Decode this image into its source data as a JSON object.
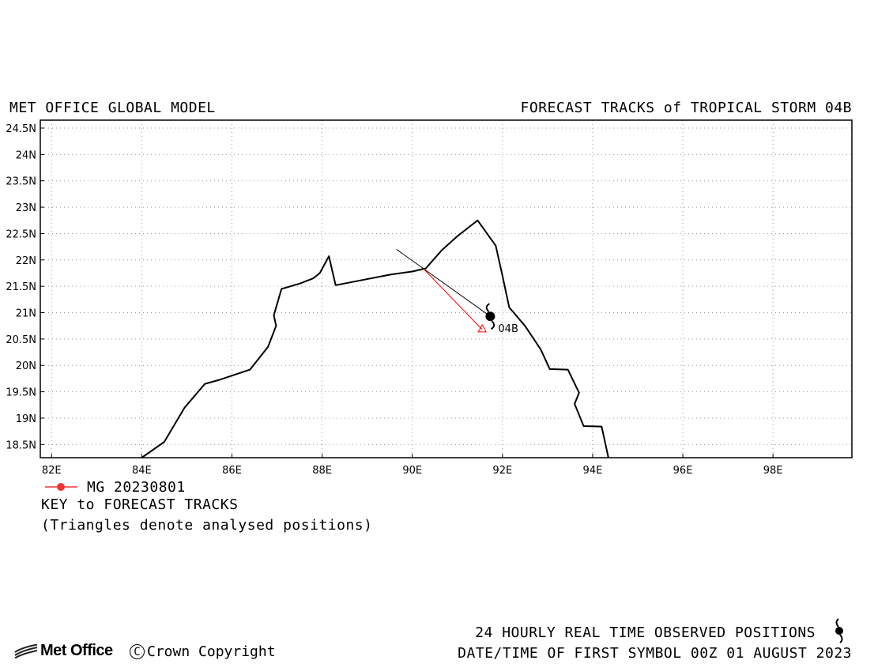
{
  "header": {
    "left_title": "MET OFFICE GLOBAL MODEL",
    "right_title": "FORECAST TRACKS of TROPICAL STORM 04B"
  },
  "map": {
    "lon_range": [
      81.75,
      99.75
    ],
    "lat_range": [
      18.25,
      24.65
    ],
    "lat_ticks": [
      {
        "value": 24.5,
        "label": "24.5N"
      },
      {
        "value": 24.0,
        "label": "24N"
      },
      {
        "value": 23.5,
        "label": "23.5N"
      },
      {
        "value": 23.0,
        "label": "23N"
      },
      {
        "value": 22.5,
        "label": "22.5N"
      },
      {
        "value": 22.0,
        "label": "22N"
      },
      {
        "value": 21.5,
        "label": "21.5N"
      },
      {
        "value": 21.0,
        "label": "21N"
      },
      {
        "value": 20.5,
        "label": "20.5N"
      },
      {
        "value": 20.0,
        "label": "20N"
      },
      {
        "value": 19.5,
        "label": "19.5N"
      },
      {
        "value": 19.0,
        "label": "19N"
      },
      {
        "value": 18.5,
        "label": "18.5N"
      }
    ],
    "lon_ticks": [
      {
        "value": 82,
        "label": "82E"
      },
      {
        "value": 84,
        "label": "84E"
      },
      {
        "value": 86,
        "label": "86E"
      },
      {
        "value": 88,
        "label": "88E"
      },
      {
        "value": 90,
        "label": "90E"
      },
      {
        "value": 92,
        "label": "92E"
      },
      {
        "value": 94,
        "label": "94E"
      },
      {
        "value": 96,
        "label": "96E"
      },
      {
        "value": 98,
        "label": "98E"
      }
    ],
    "grid": "dotted",
    "coastline": [
      [
        84.0,
        18.25
      ],
      [
        84.5,
        18.55
      ],
      [
        84.95,
        19.2
      ],
      [
        85.4,
        19.65
      ],
      [
        85.7,
        19.72
      ],
      [
        86.4,
        19.92
      ],
      [
        86.8,
        20.35
      ],
      [
        86.98,
        20.75
      ],
      [
        86.93,
        20.95
      ],
      [
        86.98,
        21.1
      ],
      [
        87.1,
        21.45
      ],
      [
        87.5,
        21.55
      ],
      [
        87.8,
        21.65
      ],
      [
        87.95,
        21.75
      ],
      [
        88.15,
        22.07
      ],
      [
        88.3,
        21.52
      ],
      [
        88.9,
        21.62
      ],
      [
        89.5,
        21.72
      ],
      [
        90.0,
        21.78
      ],
      [
        90.3,
        21.84
      ],
      [
        90.65,
        22.18
      ],
      [
        91.0,
        22.45
      ],
      [
        91.3,
        22.65
      ],
      [
        91.45,
        22.75
      ],
      [
        91.85,
        22.27
      ],
      [
        92.0,
        21.7
      ],
      [
        92.15,
        21.1
      ],
      [
        92.5,
        20.75
      ],
      [
        92.85,
        20.3
      ],
      [
        93.05,
        19.93
      ],
      [
        93.45,
        19.92
      ],
      [
        93.7,
        19.48
      ],
      [
        93.6,
        19.27
      ],
      [
        93.8,
        18.85
      ],
      [
        94.2,
        18.84
      ],
      [
        94.35,
        18.25
      ]
    ],
    "observed_track_line": {
      "from": [
        89.65,
        22.2
      ],
      "to": [
        91.73,
        20.93
      ],
      "color": "#000000"
    },
    "storm": {
      "lon": 91.73,
      "lat": 20.93,
      "label": "04B"
    }
  },
  "chart_data": {
    "type": "scatter",
    "title": "FORECAST TRACKS of TROPICAL STORM 04B",
    "series": [
      {
        "name": "MG 20230801",
        "color": "#ff0000",
        "points": [
          {
            "lon": 90.25,
            "lat": 21.83
          },
          {
            "lon": 91.55,
            "lat": 20.68
          }
        ]
      }
    ],
    "analysed_position_marker": "triangle",
    "storm_position": {
      "lon": 91.73,
      "lat": 20.93,
      "label": "04B"
    },
    "xlabel": "",
    "ylabel": "",
    "xlim": [
      81.75,
      99.75
    ],
    "ylim": [
      18.25,
      24.65
    ],
    "grid": true
  },
  "legend": {
    "label": "MG 20230801",
    "color": "#ee3333",
    "key_title": "KEY to FORECAST TRACKS",
    "key_note": "(Triangles denote analysed positions)"
  },
  "footer": {
    "observed_text": "24 HOURLY REAL TIME OBSERVED POSITIONS",
    "datetime_text": "DATE/TIME OF FIRST SYMBOL 00Z 01 AUGUST 2023",
    "logo_text": "Met Office",
    "copyright_symbol": "C",
    "copyright_text": "Crown Copyright"
  }
}
